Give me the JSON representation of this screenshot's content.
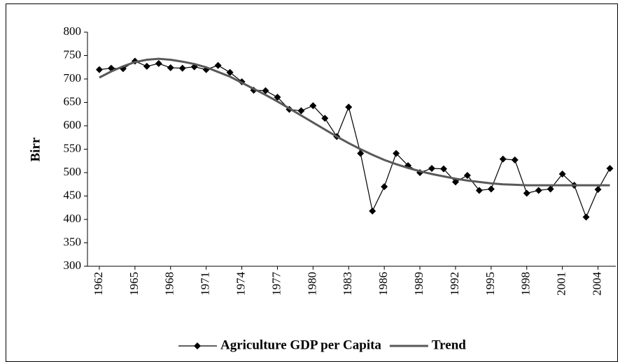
{
  "chart_data": {
    "type": "line",
    "y_label": "Birr",
    "x": [
      1962,
      1963,
      1964,
      1965,
      1966,
      1967,
      1968,
      1969,
      1970,
      1971,
      1972,
      1973,
      1974,
      1975,
      1976,
      1977,
      1978,
      1979,
      1980,
      1981,
      1982,
      1983,
      1984,
      1985,
      1986,
      1987,
      1988,
      1989,
      1990,
      1991,
      1992,
      1993,
      1994,
      1995,
      1996,
      1997,
      1998,
      1999,
      2000,
      2001,
      2002,
      2003,
      2004,
      2005
    ],
    "series": [
      {
        "name": "Agriculture GDP per Capita",
        "color": "#000000",
        "marker": "diamond",
        "values": [
          720,
          723,
          722,
          738,
          727,
          733,
          724,
          723,
          726,
          720,
          729,
          714,
          694,
          676,
          675,
          661,
          635,
          632,
          643,
          616,
          577,
          640,
          541,
          418,
          470,
          541,
          515,
          500,
          509,
          508,
          480,
          494,
          462,
          465,
          529,
          527,
          456,
          462,
          465,
          497,
          473,
          405,
          464,
          509
        ]
      },
      {
        "name": "Trend",
        "color": "#595959",
        "values": [
          703,
          716,
          727,
          736,
          741,
          743,
          741,
          737,
          732,
          725,
          715,
          705,
          692,
          679,
          666,
          652,
          637,
          622,
          607,
          592,
          577,
          563,
          550,
          538,
          527,
          518,
          510,
          503,
          497,
          492,
          487,
          483,
          480,
          477,
          475,
          474,
          473,
          473,
          473,
          473,
          473,
          473,
          473,
          473
        ]
      }
    ],
    "xlim": [
      1961,
      2005.5
    ],
    "xticks": [
      1962,
      1965,
      1968,
      1971,
      1974,
      1977,
      1980,
      1983,
      1986,
      1989,
      1992,
      1995,
      1998,
      2001,
      2004
    ],
    "ylim": [
      300,
      800
    ],
    "yticks": [
      300,
      350,
      400,
      450,
      500,
      550,
      600,
      650,
      700,
      750,
      800
    ],
    "legend": "bottom"
  }
}
